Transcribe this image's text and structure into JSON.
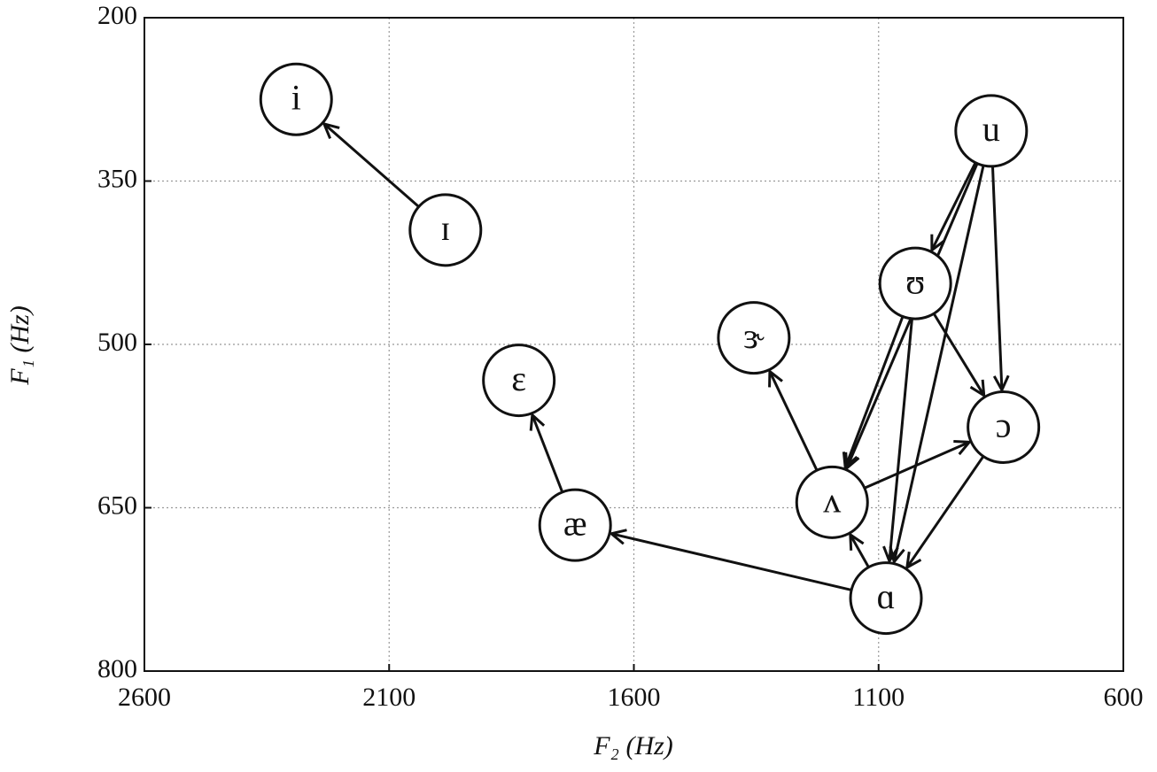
{
  "chart_data": {
    "type": "scatter",
    "x_label": "F₂ (Hz)",
    "y_label": "F₁ (Hz)",
    "xlim": [
      2600,
      600
    ],
    "ylim": [
      800,
      200
    ],
    "xticks": [
      2600,
      2100,
      1600,
      1100,
      600
    ],
    "yticks": [
      200,
      350,
      500,
      650,
      800
    ],
    "grid": true,
    "labels": [
      "i",
      "ɪ",
      "ɛ",
      "æ",
      "ɝ",
      "ʌ",
      "ɑ",
      "u",
      "ʊ",
      "ɔ"
    ],
    "x": [
      2290,
      1985,
      1835,
      1720,
      1355,
      1195,
      1085,
      870,
      1025,
      845
    ],
    "y": [
      275,
      395,
      533,
      666,
      494,
      645,
      733,
      304,
      444,
      576
    ],
    "arrows": [
      [
        1,
        0
      ],
      [
        3,
        2
      ],
      [
        6,
        3
      ],
      [
        5,
        4
      ],
      [
        6,
        5
      ],
      [
        5,
        9
      ],
      [
        7,
        8
      ],
      [
        7,
        5
      ],
      [
        7,
        6
      ],
      [
        7,
        9
      ],
      [
        8,
        5
      ],
      [
        8,
        6
      ],
      [
        8,
        9
      ],
      [
        9,
        6
      ]
    ]
  }
}
